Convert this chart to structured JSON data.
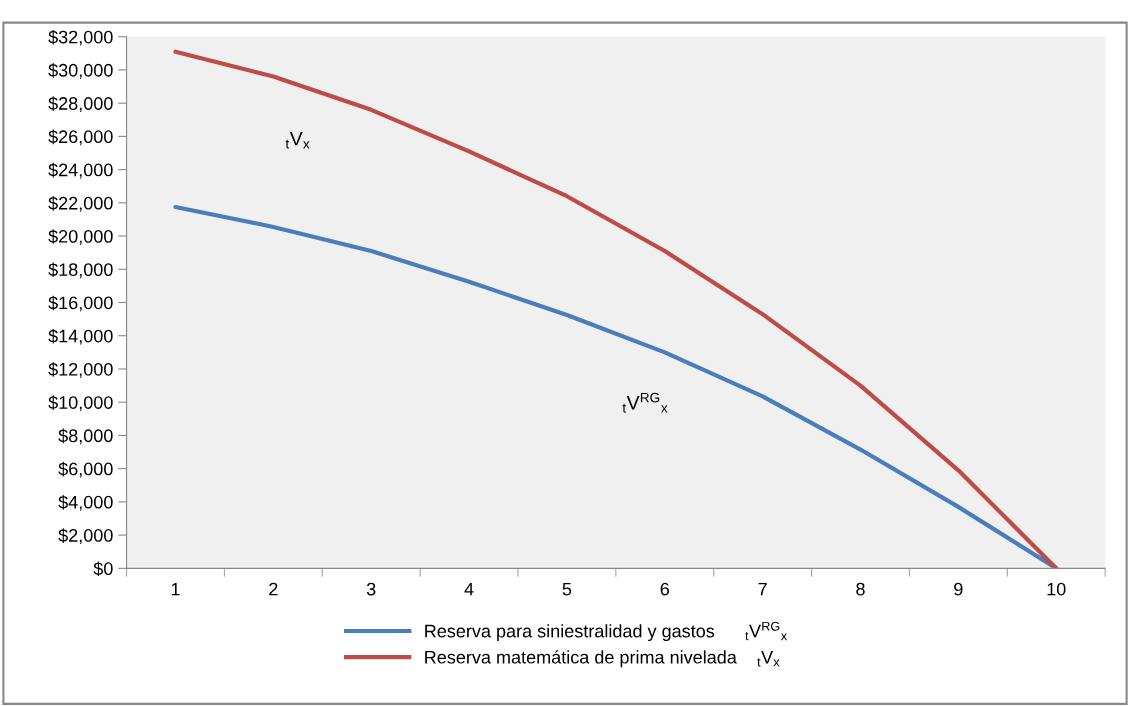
{
  "chart_data": {
    "type": "line",
    "categories": [
      "1",
      "2",
      "3",
      "4",
      "5",
      "6",
      "7",
      "8",
      "9",
      "10"
    ],
    "series": [
      {
        "name": "Reserva para siniestralidad y gastos      $_{t}$V$^{RG}$$_{x}$",
        "color": "#4a7ebb",
        "values": [
          21750,
          20550,
          19100,
          17250,
          15250,
          13000,
          10350,
          7150,
          3700,
          0
        ]
      },
      {
        "name": "Reserva matemática de prima nivelada    $_{t}$V$_{x}$",
        "color": "#be4b48",
        "values": [
          31100,
          29600,
          27600,
          25100,
          22400,
          19100,
          15300,
          11000,
          5900,
          0
        ]
      }
    ],
    "ylim": [
      0,
      32000
    ],
    "yticks": [
      {
        "value": 0,
        "label": "$0"
      },
      {
        "value": 2000,
        "label": "$2,000"
      },
      {
        "value": 4000,
        "label": "$4,000"
      },
      {
        "value": 6000,
        "label": "$6,000"
      },
      {
        "value": 8000,
        "label": "$8,000"
      },
      {
        "value": 10000,
        "label": "$10,000"
      },
      {
        "value": 12000,
        "label": "$12,000"
      },
      {
        "value": 14000,
        "label": "$14,000"
      },
      {
        "value": 16000,
        "label": "$16,000"
      },
      {
        "value": 18000,
        "label": "$18,000"
      },
      {
        "value": 20000,
        "label": "$20,000"
      },
      {
        "value": 22000,
        "label": "$22,000"
      },
      {
        "value": 24000,
        "label": "$24,000"
      },
      {
        "value": 26000,
        "label": "$26,000"
      },
      {
        "value": 28000,
        "label": "$28,000"
      },
      {
        "value": 30000,
        "label": "$30,000"
      },
      {
        "value": 32000,
        "label": "$32,000"
      }
    ],
    "annotations": [
      "$_{t}$V$_{x}$",
      "$_{t}$V$^{RG}$$_{x}$"
    ],
    "grid": false,
    "legend": "bottom",
    "marker": "none",
    "line_style": "solid"
  }
}
